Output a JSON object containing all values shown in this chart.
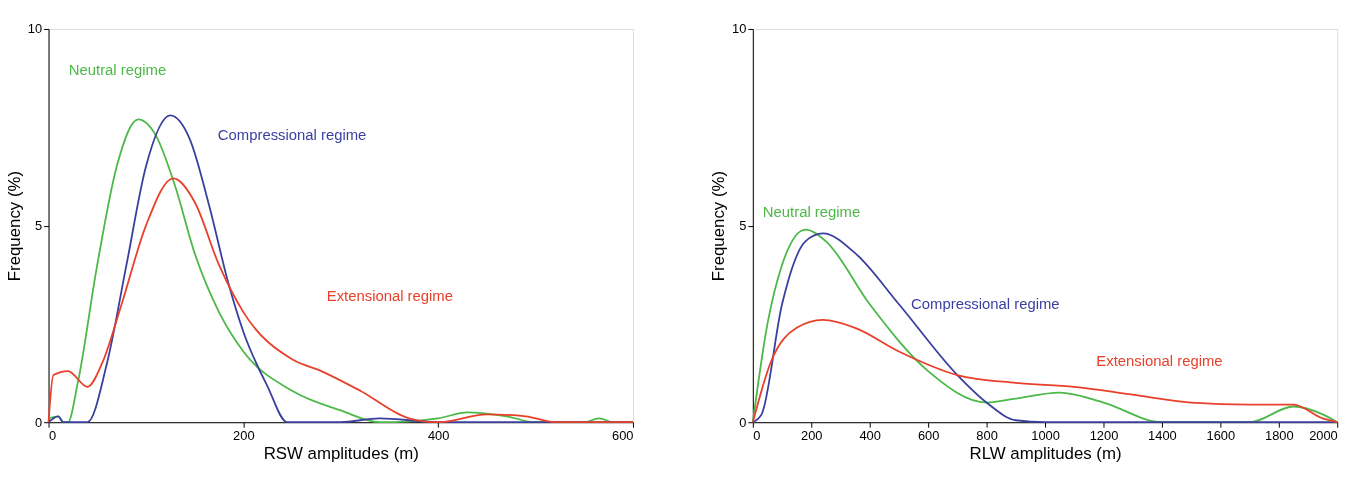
{
  "chart_data": [
    {
      "type": "line",
      "xlabel": "RSW amplitudes (m)",
      "ylabel": "Frequency (%)",
      "xlim": [
        0,
        600
      ],
      "xticks": [
        0,
        200,
        400,
        600
      ],
      "ylim": [
        0,
        10
      ],
      "yticks": [
        0,
        5,
        10
      ],
      "grid": false,
      "marker": "none",
      "line_style": "solid",
      "series": [
        {
          "name": "Neutral regime",
          "color": "#4cb848",
          "x": [
            0,
            10,
            15,
            20,
            30,
            50,
            70,
            92,
            110,
            130,
            150,
            175,
            200,
            250,
            300,
            340,
            400,
            430,
            470,
            500,
            550,
            565,
            580,
            600
          ],
          "values": [
            0.1,
            0.15,
            0,
            0,
            1,
            4,
            6.5,
            7.7,
            7.3,
            6,
            4.3,
            2.8,
            1.8,
            0.8,
            0.3,
            0,
            0.1,
            0.25,
            0.15,
            0,
            0,
            0.1,
            0,
            0
          ]
        },
        {
          "name": "Compressional regime",
          "color": "#3a3f9f",
          "x": [
            0,
            10,
            15,
            40,
            60,
            80,
            100,
            125,
            145,
            165,
            185,
            200,
            225,
            245,
            300,
            340,
            400,
            600
          ],
          "values": [
            0,
            0.15,
            0,
            0,
            1.5,
            4,
            6.5,
            7.8,
            7.2,
            5.5,
            3.5,
            2.3,
            0.9,
            0,
            0,
            0.1,
            0,
            0
          ]
        },
        {
          "name": "Extensional regime",
          "color": "#e8402a",
          "x": [
            0,
            5,
            20,
            40,
            55,
            75,
            100,
            128,
            150,
            175,
            200,
            250,
            280,
            320,
            370,
            400,
            450,
            490,
            520,
            600
          ],
          "values": [
            0,
            1.2,
            1.3,
            0.9,
            1.5,
            3,
            5,
            6.2,
            5.6,
            4,
            2.8,
            1.6,
            1.3,
            0.8,
            0.1,
            0,
            0.2,
            0.15,
            0,
            0
          ]
        }
      ]
    },
    {
      "type": "line",
      "xlabel": "RLW amplitudes (m)",
      "ylabel": "Frequency (%)",
      "xlim": [
        0,
        2000
      ],
      "xticks": [
        0,
        200,
        400,
        600,
        800,
        1000,
        1200,
        1400,
        1600,
        1800,
        2000
      ],
      "ylim": [
        0,
        10
      ],
      "yticks": [
        0,
        5,
        10
      ],
      "grid": false,
      "marker": "none",
      "line_style": "solid",
      "series": [
        {
          "name": "Neutral regime",
          "color": "#4cb848",
          "x": [
            0,
            50,
            100,
            180,
            250,
            400,
            600,
            800,
            900,
            1050,
            1200,
            1400,
            1700,
            1850,
            1950,
            2000
          ],
          "values": [
            0,
            2.5,
            4,
            4.9,
            4.6,
            3,
            1.3,
            0.5,
            0.6,
            0.75,
            0.5,
            0,
            0,
            0.4,
            0.2,
            0
          ]
        },
        {
          "name": "Compressional regime",
          "color": "#3a3f9f",
          "x": [
            0,
            30,
            100,
            180,
            240,
            350,
            500,
            700,
            800,
            900,
            1000,
            2000
          ],
          "values": [
            0,
            0.2,
            3,
            4.6,
            4.8,
            4.3,
            3,
            1.2,
            0.5,
            0.05,
            0,
            0
          ]
        },
        {
          "name": "Extensional regime",
          "color": "#e8402a",
          "x": [
            0,
            60,
            150,
            240,
            350,
            500,
            700,
            900,
            1100,
            1300,
            1500,
            1700,
            1850,
            1950,
            2000
          ],
          "values": [
            0,
            1.5,
            2.4,
            2.6,
            2.4,
            1.8,
            1.2,
            1.0,
            0.9,
            0.7,
            0.5,
            0.45,
            0.45,
            0.1,
            0
          ]
        }
      ]
    }
  ]
}
